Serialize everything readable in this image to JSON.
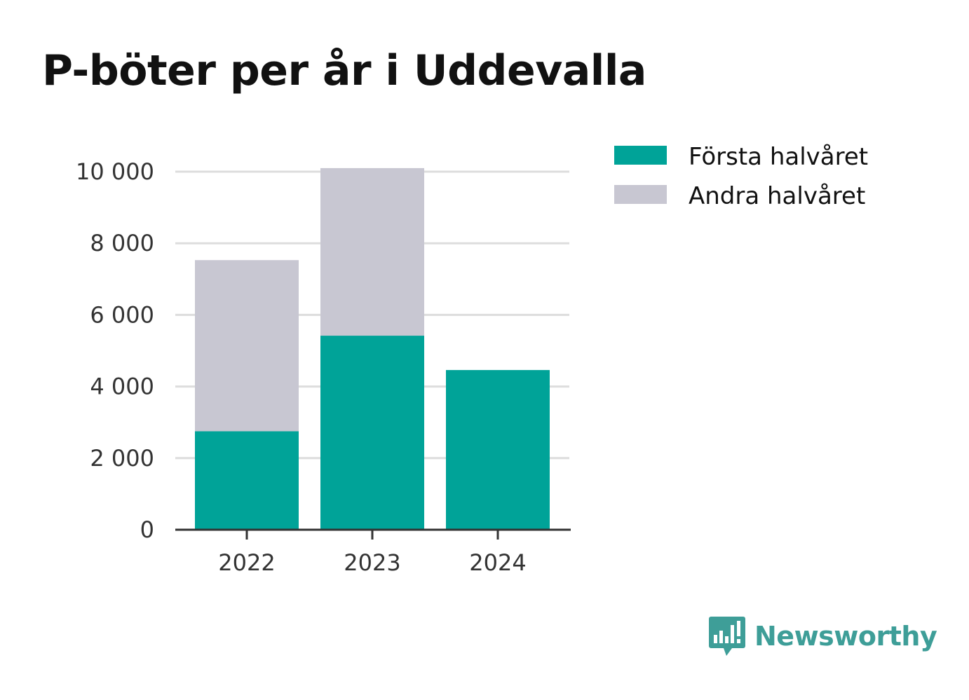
{
  "title": "P-böter per år i Uddevalla",
  "colors": {
    "first_half": "#00A398",
    "second_half": "#C8C7D2",
    "grid": "#DDDDDD",
    "axis": "#333333",
    "brand": "#3E9E98"
  },
  "brand": {
    "name": "Newsworthy",
    "icon": "newsworthy-logo-icon"
  },
  "chart_data": {
    "type": "bar",
    "stacked": true,
    "categories": [
      "2022",
      "2023",
      "2024"
    ],
    "series": [
      {
        "name": "Första halvåret",
        "values": [
          2750,
          5420,
          4460
        ]
      },
      {
        "name": "Andra halvåret",
        "values": [
          4780,
          4680,
          0
        ]
      }
    ],
    "ylim": [
      0,
      10000
    ],
    "yticks": [
      0,
      2000,
      4000,
      6000,
      8000,
      10000
    ],
    "ytick_labels": [
      "0",
      "2 000",
      "4 000",
      "6 000",
      "8 000",
      "10 000"
    ],
    "grid": true,
    "legend": "top-right"
  }
}
